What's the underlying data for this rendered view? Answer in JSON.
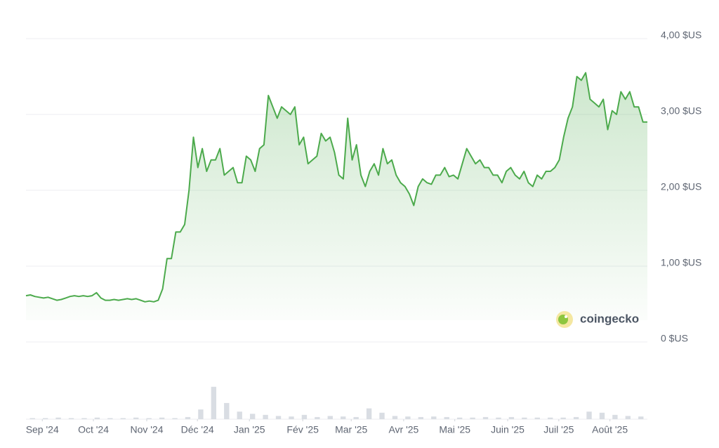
{
  "chart_data": {
    "type": "line",
    "watermark": "coingecko",
    "series": [
      {
        "color": "#4caa4c",
        "values": [
          0.61,
          0.62,
          0.6,
          0.59,
          0.58,
          0.59,
          0.57,
          0.55,
          0.56,
          0.58,
          0.6,
          0.61,
          0.6,
          0.61,
          0.6,
          0.61,
          0.65,
          0.58,
          0.55,
          0.55,
          0.56,
          0.55,
          0.56,
          0.57,
          0.56,
          0.57,
          0.55,
          0.53,
          0.54,
          0.53,
          0.55,
          0.7,
          1.1,
          1.1,
          1.45,
          1.45,
          1.55,
          2.0,
          2.7,
          2.3,
          2.55,
          2.25,
          2.4,
          2.4,
          2.55,
          2.2,
          2.25,
          2.3,
          2.1,
          2.1,
          2.45,
          2.4,
          2.25,
          2.55,
          2.6,
          3.25,
          3.1,
          2.95,
          3.1,
          3.05,
          3.0,
          3.1,
          2.6,
          2.7,
          2.35,
          2.4,
          2.45,
          2.75,
          2.65,
          2.7,
          2.5,
          2.2,
          2.15,
          2.95,
          2.4,
          2.6,
          2.2,
          2.05,
          2.25,
          2.35,
          2.2,
          2.55,
          2.35,
          2.4,
          2.2,
          2.1,
          2.05,
          1.95,
          1.8,
          2.05,
          2.15,
          2.1,
          2.08,
          2.2,
          2.2,
          2.3,
          2.18,
          2.2,
          2.15,
          2.35,
          2.55,
          2.45,
          2.35,
          2.4,
          2.3,
          2.3,
          2.2,
          2.2,
          2.1,
          2.25,
          2.3,
          2.2,
          2.15,
          2.25,
          2.1,
          2.05,
          2.2,
          2.15,
          2.25,
          2.25,
          2.3,
          2.4,
          2.7,
          2.95,
          3.1,
          3.5,
          3.45,
          3.55,
          3.2,
          3.15,
          3.1,
          3.2,
          2.8,
          3.05,
          3.0,
          3.3,
          3.2,
          3.3,
          3.1,
          3.1,
          2.9,
          2.9
        ]
      }
    ],
    "xlim": [
      0,
      141
    ],
    "xticks": [
      {
        "value": 3.7,
        "label": "Sep '24"
      },
      {
        "value": 15.3,
        "label": "Oct '24"
      },
      {
        "value": 27.4,
        "label": "Nov '24"
      },
      {
        "value": 38.9,
        "label": "Déc '24"
      },
      {
        "value": 50.7,
        "label": "Jan '25"
      },
      {
        "value": 62.8,
        "label": "Fév '25"
      },
      {
        "value": 73.8,
        "label": "Mar '25"
      },
      {
        "value": 85.7,
        "label": "Avr '25"
      },
      {
        "value": 97.3,
        "label": "Mai '25"
      },
      {
        "value": 109.3,
        "label": "Juin '25"
      },
      {
        "value": 120.9,
        "label": "Juil '25"
      },
      {
        "value": 132.5,
        "label": "Août '25"
      }
    ],
    "ylim": [
      0,
      4
    ],
    "yticks": [
      {
        "value": 0,
        "label": "0 $US"
      },
      {
        "value": 1,
        "label": "1,00 $US"
      },
      {
        "value": 2,
        "label": "2,00 $US"
      },
      {
        "value": 3,
        "label": "3,00 $US"
      },
      {
        "value": 4,
        "label": "4,00 $US"
      }
    ],
    "grid": true,
    "volume": {
      "color": "#d9dde3",
      "ylim": [
        0,
        100
      ],
      "values": [
        2,
        2,
        3,
        2,
        2,
        3,
        2,
        2,
        3,
        2,
        3,
        2,
        4,
        18,
        60,
        30,
        14,
        10,
        8,
        6,
        5,
        8,
        4,
        6,
        5,
        4,
        20,
        12,
        6,
        5,
        4,
        5,
        4,
        3,
        3,
        4,
        3,
        4,
        3,
        3,
        3,
        3,
        4,
        14,
        12,
        8,
        6,
        5
      ]
    }
  }
}
